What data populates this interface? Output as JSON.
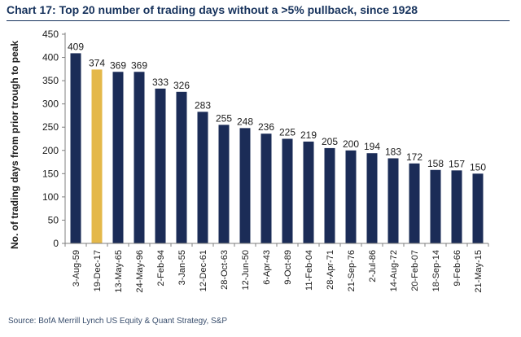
{
  "chart_data": {
    "type": "bar",
    "title": "Chart 17: Top 20 number of trading days without a >5% pullback, since 1928",
    "ylabel": "No. of trading days from prior trough to peak",
    "xlabel": "",
    "categories": [
      "3-Aug-59",
      "19-Dec-17",
      "13-May-65",
      "24-May-96",
      "2-Feb-94",
      "3-Jan-55",
      "12-Dec-61",
      "28-Oct-63",
      "12-Jun-50",
      "6-Apr-43",
      "9-Oct-89",
      "11-Feb-04",
      "28-Apr-71",
      "21-Sep-76",
      "2-Jul-86",
      "14-Aug-72",
      "20-Feb-07",
      "18-Sep-14",
      "9-Feb-66",
      "21-May-15"
    ],
    "values": [
      409,
      374,
      369,
      369,
      333,
      326,
      283,
      255,
      248,
      236,
      225,
      219,
      205,
      200,
      194,
      183,
      172,
      158,
      157,
      150
    ],
    "highlight_index": 1,
    "ylim": [
      0,
      450
    ],
    "yticks": [
      0,
      50,
      100,
      150,
      200,
      250,
      300,
      350,
      400,
      450
    ],
    "grid": false,
    "legend": "none",
    "colors": {
      "bar": "#1b2c57",
      "highlight": "#e4b84a",
      "axis": "#7f7f7f",
      "title": "#16325c"
    }
  },
  "source": "Source: BofA Merrill Lynch US Equity & Quant Strategy, S&P"
}
